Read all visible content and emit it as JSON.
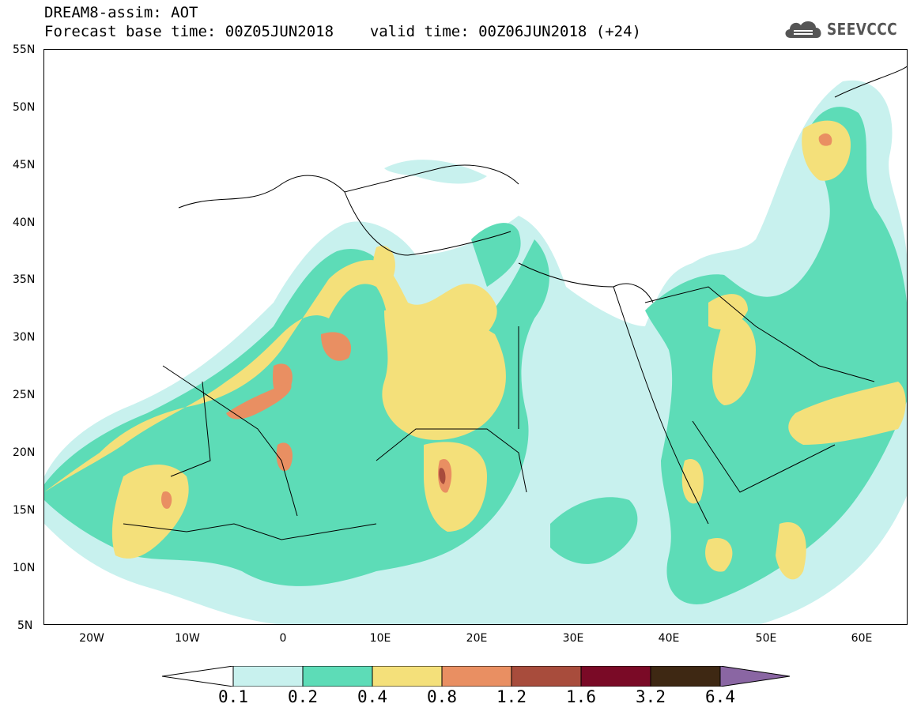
{
  "header": {
    "line1": "DREAM8-assim: AOT",
    "base_label": "Forecast base time: 00Z05JUN2018",
    "valid_label": "valid time: 00Z06JUN2018 (+24)"
  },
  "logo": {
    "text": "SEEVCCC",
    "icon": "cloud-icon"
  },
  "map": {
    "lat_labels": [
      "55N",
      "50N",
      "45N",
      "40N",
      "35N",
      "30N",
      "25N",
      "20N",
      "15N",
      "10N",
      "5N"
    ],
    "lon_labels": [
      "20W",
      "10W",
      "0",
      "10E",
      "20E",
      "30E",
      "40E",
      "50E",
      "60E"
    ],
    "colors": {
      "c1": "#c8f1ee",
      "c2": "#5ddcb7",
      "c3": "#f4e07a",
      "c4": "#e98f62",
      "c5": "#a84c3c",
      "c6": "#7a0a26",
      "c7": "#3e2813",
      "c8": "#8a66a3"
    }
  },
  "colorbar": {
    "labels": [
      "0.1",
      "0.2",
      "0.4",
      "0.8",
      "1.2",
      "1.6",
      "3.2",
      "6.4"
    ]
  }
}
